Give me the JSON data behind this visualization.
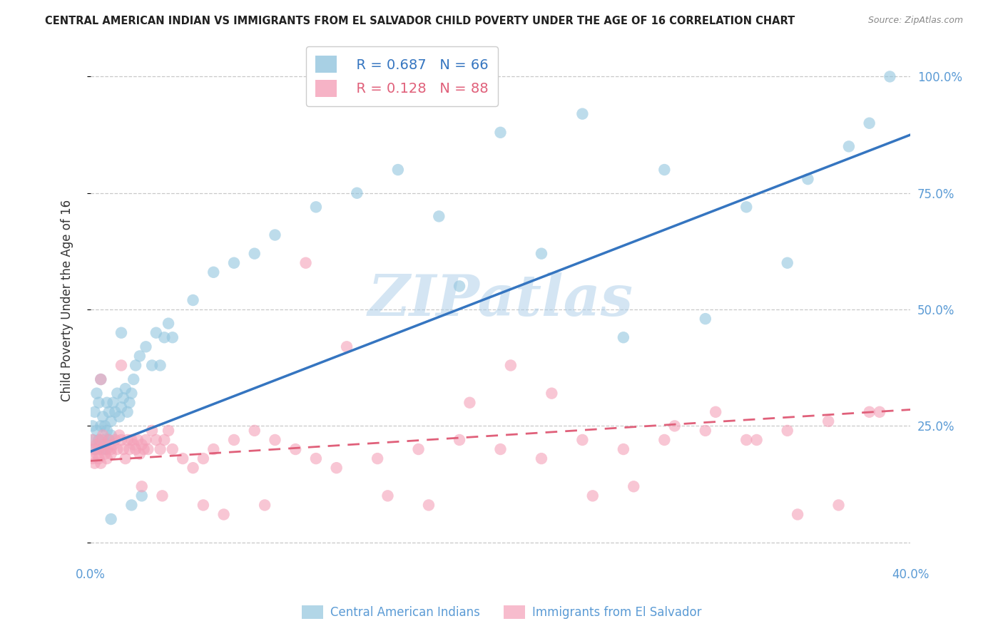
{
  "title": "CENTRAL AMERICAN INDIAN VS IMMIGRANTS FROM EL SALVADOR CHILD POVERTY UNDER THE AGE OF 16 CORRELATION CHART",
  "source": "Source: ZipAtlas.com",
  "ylabel": "Child Poverty Under the Age of 16",
  "watermark": "ZIPatlas",
  "legend_blue_r": "R = 0.687",
  "legend_blue_n": "N = 66",
  "legend_pink_r": "R = 0.128",
  "legend_pink_n": "N = 88",
  "blue_color": "#92c5de",
  "pink_color": "#f4a0b8",
  "blue_line_color": "#3575c0",
  "pink_line_color": "#e0607a",
  "label_color": "#5b9bd5",
  "background_color": "#ffffff",
  "grid_color": "#bbbbbb",
  "xlim": [
    0.0,
    0.4
  ],
  "ylim": [
    -0.04,
    1.08
  ],
  "y_ticks": [
    0.0,
    0.25,
    0.5,
    0.75,
    1.0
  ],
  "y_tick_labels_right": [
    "",
    "25.0%",
    "50.0%",
    "75.0%",
    "100.0%"
  ],
  "blue_scatter_x": [
    0.001,
    0.001,
    0.002,
    0.002,
    0.003,
    0.003,
    0.004,
    0.004,
    0.005,
    0.005,
    0.006,
    0.006,
    0.007,
    0.007,
    0.008,
    0.008,
    0.009,
    0.009,
    0.01,
    0.01,
    0.011,
    0.012,
    0.013,
    0.014,
    0.015,
    0.015,
    0.016,
    0.017,
    0.018,
    0.019,
    0.02,
    0.021,
    0.022,
    0.024,
    0.025,
    0.027,
    0.03,
    0.032,
    0.034,
    0.036,
    0.038,
    0.04,
    0.05,
    0.06,
    0.07,
    0.08,
    0.09,
    0.11,
    0.13,
    0.15,
    0.17,
    0.2,
    0.24,
    0.28,
    0.32,
    0.35,
    0.37,
    0.38,
    0.39,
    0.01,
    0.02,
    0.18,
    0.22,
    0.26,
    0.3,
    0.34
  ],
  "blue_scatter_y": [
    0.22,
    0.25,
    0.2,
    0.28,
    0.24,
    0.32,
    0.22,
    0.3,
    0.25,
    0.35,
    0.27,
    0.22,
    0.2,
    0.25,
    0.24,
    0.3,
    0.22,
    0.28,
    0.23,
    0.26,
    0.3,
    0.28,
    0.32,
    0.27,
    0.29,
    0.45,
    0.31,
    0.33,
    0.28,
    0.3,
    0.32,
    0.35,
    0.38,
    0.4,
    0.1,
    0.42,
    0.38,
    0.45,
    0.38,
    0.44,
    0.47,
    0.44,
    0.52,
    0.58,
    0.6,
    0.62,
    0.66,
    0.72,
    0.75,
    0.8,
    0.7,
    0.88,
    0.92,
    0.8,
    0.72,
    0.78,
    0.85,
    0.9,
    1.0,
    0.05,
    0.08,
    0.55,
    0.62,
    0.44,
    0.48,
    0.6
  ],
  "pink_scatter_x": [
    0.001,
    0.001,
    0.002,
    0.002,
    0.003,
    0.003,
    0.004,
    0.004,
    0.005,
    0.005,
    0.006,
    0.006,
    0.007,
    0.007,
    0.008,
    0.008,
    0.009,
    0.01,
    0.01,
    0.011,
    0.012,
    0.013,
    0.014,
    0.015,
    0.016,
    0.017,
    0.018,
    0.019,
    0.02,
    0.021,
    0.022,
    0.023,
    0.024,
    0.025,
    0.026,
    0.027,
    0.028,
    0.03,
    0.032,
    0.034,
    0.036,
    0.038,
    0.04,
    0.045,
    0.05,
    0.055,
    0.06,
    0.07,
    0.08,
    0.09,
    0.1,
    0.11,
    0.12,
    0.14,
    0.16,
    0.18,
    0.2,
    0.22,
    0.24,
    0.26,
    0.28,
    0.3,
    0.32,
    0.34,
    0.36,
    0.38,
    0.005,
    0.015,
    0.025,
    0.035,
    0.055,
    0.065,
    0.085,
    0.105,
    0.125,
    0.145,
    0.165,
    0.185,
    0.205,
    0.225,
    0.245,
    0.265,
    0.285,
    0.305,
    0.325,
    0.345,
    0.365,
    0.385
  ],
  "pink_scatter_y": [
    0.18,
    0.22,
    0.2,
    0.17,
    0.19,
    0.21,
    0.18,
    0.2,
    0.17,
    0.22,
    0.2,
    0.23,
    0.19,
    0.21,
    0.2,
    0.18,
    0.22,
    0.2,
    0.19,
    0.21,
    0.22,
    0.2,
    0.23,
    0.22,
    0.2,
    0.18,
    0.22,
    0.2,
    0.22,
    0.21,
    0.2,
    0.22,
    0.19,
    0.21,
    0.2,
    0.22,
    0.2,
    0.24,
    0.22,
    0.2,
    0.22,
    0.24,
    0.2,
    0.18,
    0.16,
    0.18,
    0.2,
    0.22,
    0.24,
    0.22,
    0.2,
    0.18,
    0.16,
    0.18,
    0.2,
    0.22,
    0.2,
    0.18,
    0.22,
    0.2,
    0.22,
    0.24,
    0.22,
    0.24,
    0.26,
    0.28,
    0.35,
    0.38,
    0.12,
    0.1,
    0.08,
    0.06,
    0.08,
    0.6,
    0.42,
    0.1,
    0.08,
    0.3,
    0.38,
    0.32,
    0.1,
    0.12,
    0.25,
    0.28,
    0.22,
    0.06,
    0.08,
    0.28
  ],
  "blue_regline_x": [
    0.0,
    0.4
  ],
  "blue_regline_y": [
    0.195,
    0.875
  ],
  "pink_regline_x": [
    0.0,
    0.4
  ],
  "pink_regline_y": [
    0.175,
    0.285
  ]
}
